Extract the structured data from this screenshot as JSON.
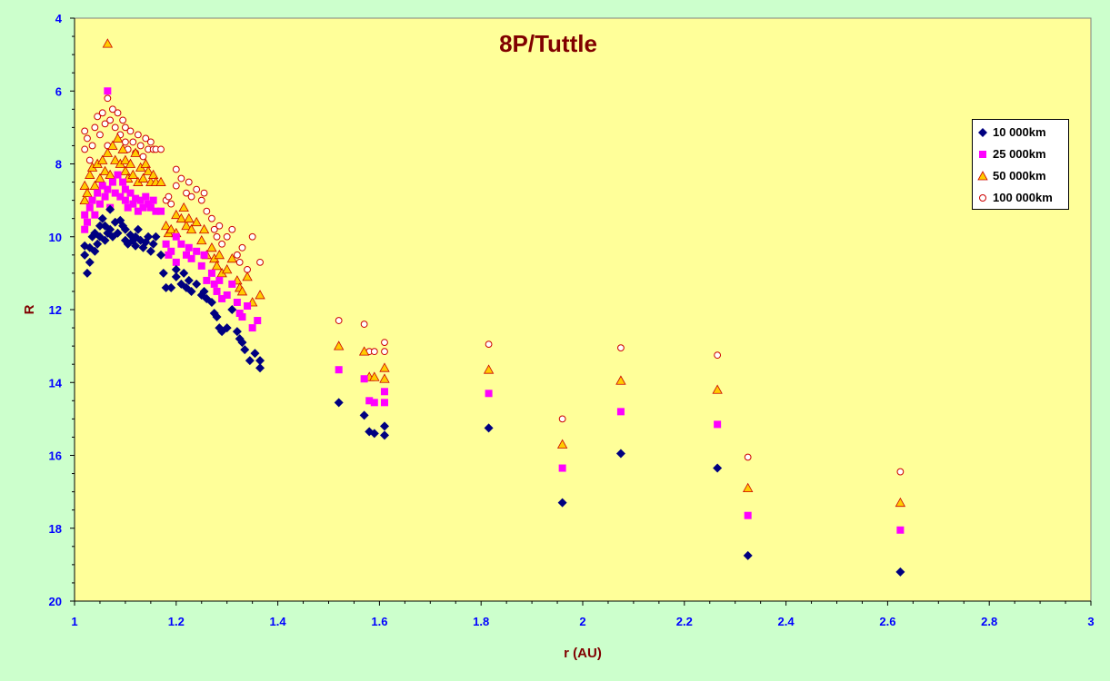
{
  "chart_data": {
    "type": "scatter",
    "title": "8P/Tuttle",
    "xlabel": "r (AU)",
    "ylabel": "R",
    "xlim": [
      1,
      3
    ],
    "ylim": [
      4,
      20
    ],
    "y_inverted": true,
    "x_ticks": [
      "1",
      "1.2",
      "1.4",
      "1.6",
      "1.8",
      "2",
      "2.2",
      "2.4",
      "2.6",
      "2.8",
      "3"
    ],
    "y_ticks": [
      "4",
      "6",
      "8",
      "10",
      "12",
      "14",
      "16",
      "18",
      "20"
    ],
    "grid": false,
    "legend_position": "top-right",
    "series": [
      {
        "name": "10 000km",
        "marker": "diamond",
        "color": "#000080",
        "points": [
          [
            1.02,
            10.25
          ],
          [
            1.02,
            10.5
          ],
          [
            1.025,
            11.0
          ],
          [
            1.03,
            10.7
          ],
          [
            1.03,
            10.3
          ],
          [
            1.035,
            10.0
          ],
          [
            1.04,
            9.9
          ],
          [
            1.04,
            10.4
          ],
          [
            1.045,
            10.2
          ],
          [
            1.05,
            9.7
          ],
          [
            1.05,
            10.0
          ],
          [
            1.055,
            9.5
          ],
          [
            1.06,
            9.7
          ],
          [
            1.06,
            10.1
          ],
          [
            1.065,
            9.9
          ],
          [
            1.07,
            9.25
          ],
          [
            1.07,
            9.8
          ],
          [
            1.075,
            10.0
          ],
          [
            1.08,
            9.6
          ],
          [
            1.085,
            9.9
          ],
          [
            1.09,
            9.55
          ],
          [
            1.095,
            9.7
          ],
          [
            1.1,
            9.8
          ],
          [
            1.1,
            10.1
          ],
          [
            1.105,
            10.2
          ],
          [
            1.11,
            9.95
          ],
          [
            1.115,
            10.1
          ],
          [
            1.12,
            10.0
          ],
          [
            1.12,
            10.25
          ],
          [
            1.125,
            9.8
          ],
          [
            1.13,
            10.1
          ],
          [
            1.135,
            10.3
          ],
          [
            1.14,
            10.15
          ],
          [
            1.145,
            10.0
          ],
          [
            1.15,
            10.4
          ],
          [
            1.155,
            10.2
          ],
          [
            1.16,
            10.0
          ],
          [
            1.17,
            10.5
          ],
          [
            1.175,
            11.0
          ],
          [
            1.18,
            11.4
          ],
          [
            1.19,
            11.4
          ],
          [
            1.2,
            10.9
          ],
          [
            1.2,
            11.1
          ],
          [
            1.21,
            11.3
          ],
          [
            1.215,
            11.0
          ],
          [
            1.22,
            11.4
          ],
          [
            1.225,
            11.2
          ],
          [
            1.23,
            11.5
          ],
          [
            1.24,
            11.3
          ],
          [
            1.25,
            11.6
          ],
          [
            1.255,
            11.5
          ],
          [
            1.26,
            11.7
          ],
          [
            1.27,
            11.8
          ],
          [
            1.275,
            12.1
          ],
          [
            1.28,
            12.2
          ],
          [
            1.285,
            12.5
          ],
          [
            1.29,
            12.6
          ],
          [
            1.3,
            12.5
          ],
          [
            1.31,
            12.0
          ],
          [
            1.32,
            12.6
          ],
          [
            1.325,
            12.8
          ],
          [
            1.33,
            12.9
          ],
          [
            1.335,
            13.1
          ],
          [
            1.345,
            13.4
          ],
          [
            1.355,
            13.2
          ],
          [
            1.365,
            13.6
          ],
          [
            1.365,
            13.4
          ],
          [
            1.52,
            14.55
          ],
          [
            1.57,
            14.9
          ],
          [
            1.58,
            15.35
          ],
          [
            1.59,
            15.4
          ],
          [
            1.61,
            15.2
          ],
          [
            1.61,
            15.45
          ],
          [
            1.815,
            15.25
          ],
          [
            1.96,
            17.3
          ],
          [
            2.075,
            15.95
          ],
          [
            2.265,
            16.35
          ],
          [
            2.325,
            18.75
          ],
          [
            2.625,
            19.2
          ]
        ]
      },
      {
        "name": "25 000km",
        "marker": "square",
        "color": "#ff00ff",
        "points": [
          [
            1.02,
            9.4
          ],
          [
            1.02,
            9.8
          ],
          [
            1.025,
            9.6
          ],
          [
            1.03,
            9.2
          ],
          [
            1.035,
            9.0
          ],
          [
            1.04,
            9.4
          ],
          [
            1.045,
            8.8
          ],
          [
            1.05,
            9.1
          ],
          [
            1.055,
            8.6
          ],
          [
            1.06,
            8.9
          ],
          [
            1.065,
            8.7
          ],
          [
            1.065,
            6.0
          ],
          [
            1.07,
            9.2
          ],
          [
            1.075,
            8.5
          ],
          [
            1.08,
            8.8
          ],
          [
            1.085,
            8.3
          ],
          [
            1.09,
            8.9
          ],
          [
            1.095,
            8.5
          ],
          [
            1.1,
            8.7
          ],
          [
            1.1,
            9.0
          ],
          [
            1.105,
            9.2
          ],
          [
            1.11,
            8.8
          ],
          [
            1.115,
            9.1
          ],
          [
            1.12,
            8.95
          ],
          [
            1.125,
            9.3
          ],
          [
            1.13,
            9.0
          ],
          [
            1.135,
            9.2
          ],
          [
            1.14,
            8.9
          ],
          [
            1.145,
            9.1
          ],
          [
            1.15,
            9.2
          ],
          [
            1.155,
            9.0
          ],
          [
            1.16,
            9.3
          ],
          [
            1.17,
            9.3
          ],
          [
            1.18,
            10.2
          ],
          [
            1.185,
            10.5
          ],
          [
            1.19,
            10.4
          ],
          [
            1.2,
            10.0
          ],
          [
            1.2,
            10.7
          ],
          [
            1.21,
            10.2
          ],
          [
            1.22,
            10.5
          ],
          [
            1.225,
            10.3
          ],
          [
            1.23,
            10.6
          ],
          [
            1.24,
            10.4
          ],
          [
            1.25,
            10.8
          ],
          [
            1.255,
            10.5
          ],
          [
            1.26,
            11.2
          ],
          [
            1.27,
            11.0
          ],
          [
            1.275,
            11.3
          ],
          [
            1.28,
            11.5
          ],
          [
            1.285,
            11.2
          ],
          [
            1.29,
            11.7
          ],
          [
            1.3,
            11.6
          ],
          [
            1.31,
            11.3
          ],
          [
            1.32,
            11.8
          ],
          [
            1.325,
            12.1
          ],
          [
            1.33,
            12.2
          ],
          [
            1.34,
            11.9
          ],
          [
            1.35,
            12.5
          ],
          [
            1.36,
            12.3
          ],
          [
            1.52,
            13.65
          ],
          [
            1.57,
            13.9
          ],
          [
            1.58,
            14.5
          ],
          [
            1.59,
            14.55
          ],
          [
            1.61,
            14.25
          ],
          [
            1.61,
            14.55
          ],
          [
            1.815,
            14.3
          ],
          [
            1.96,
            16.35
          ],
          [
            2.075,
            14.8
          ],
          [
            2.265,
            15.15
          ],
          [
            2.325,
            17.65
          ],
          [
            2.625,
            18.05
          ]
        ]
      },
      {
        "name": "50 000km",
        "marker": "triangle",
        "color": "#ffcc00",
        "points": [
          [
            1.02,
            8.6
          ],
          [
            1.02,
            9.0
          ],
          [
            1.025,
            8.8
          ],
          [
            1.03,
            8.3
          ],
          [
            1.035,
            8.1
          ],
          [
            1.04,
            8.6
          ],
          [
            1.045,
            8.0
          ],
          [
            1.05,
            8.4
          ],
          [
            1.055,
            7.9
          ],
          [
            1.06,
            8.2
          ],
          [
            1.065,
            4.7
          ],
          [
            1.065,
            7.7
          ],
          [
            1.07,
            8.3
          ],
          [
            1.075,
            7.5
          ],
          [
            1.08,
            7.9
          ],
          [
            1.085,
            7.3
          ],
          [
            1.09,
            8.0
          ],
          [
            1.095,
            7.6
          ],
          [
            1.1,
            7.9
          ],
          [
            1.1,
            8.2
          ],
          [
            1.105,
            8.4
          ],
          [
            1.11,
            8.0
          ],
          [
            1.115,
            8.3
          ],
          [
            1.12,
            7.7
          ],
          [
            1.125,
            8.5
          ],
          [
            1.13,
            8.1
          ],
          [
            1.135,
            8.4
          ],
          [
            1.14,
            8.0
          ],
          [
            1.145,
            8.2
          ],
          [
            1.15,
            8.5
          ],
          [
            1.155,
            8.3
          ],
          [
            1.16,
            8.5
          ],
          [
            1.17,
            8.5
          ],
          [
            1.18,
            9.7
          ],
          [
            1.185,
            9.9
          ],
          [
            1.19,
            9.8
          ],
          [
            1.2,
            9.4
          ],
          [
            1.2,
            9.9
          ],
          [
            1.21,
            9.5
          ],
          [
            1.215,
            9.2
          ],
          [
            1.22,
            9.7
          ],
          [
            1.225,
            9.5
          ],
          [
            1.23,
            9.8
          ],
          [
            1.24,
            9.6
          ],
          [
            1.25,
            10.1
          ],
          [
            1.255,
            9.8
          ],
          [
            1.26,
            10.5
          ],
          [
            1.27,
            10.3
          ],
          [
            1.275,
            10.6
          ],
          [
            1.28,
            10.8
          ],
          [
            1.285,
            10.5
          ],
          [
            1.29,
            11.0
          ],
          [
            1.3,
            10.9
          ],
          [
            1.31,
            10.6
          ],
          [
            1.32,
            11.2
          ],
          [
            1.325,
            11.4
          ],
          [
            1.33,
            11.5
          ],
          [
            1.34,
            11.1
          ],
          [
            1.35,
            11.8
          ],
          [
            1.365,
            11.6
          ],
          [
            1.52,
            13.0
          ],
          [
            1.57,
            13.15
          ],
          [
            1.58,
            13.85
          ],
          [
            1.59,
            13.85
          ],
          [
            1.61,
            13.6
          ],
          [
            1.61,
            13.9
          ],
          [
            1.815,
            13.65
          ],
          [
            1.96,
            15.7
          ],
          [
            2.075,
            13.95
          ],
          [
            2.265,
            14.2
          ],
          [
            2.325,
            16.9
          ],
          [
            2.625,
            17.3
          ]
        ]
      },
      {
        "name": "100 000km",
        "marker": "circle",
        "color": "#cc0000",
        "points": [
          [
            1.02,
            7.1
          ],
          [
            1.02,
            7.6
          ],
          [
            1.025,
            7.3
          ],
          [
            1.03,
            7.9
          ],
          [
            1.035,
            7.5
          ],
          [
            1.04,
            7.0
          ],
          [
            1.045,
            6.7
          ],
          [
            1.05,
            7.2
          ],
          [
            1.055,
            6.6
          ],
          [
            1.06,
            6.9
          ],
          [
            1.065,
            6.2
          ],
          [
            1.065,
            7.5
          ],
          [
            1.07,
            6.8
          ],
          [
            1.075,
            6.5
          ],
          [
            1.08,
            7.0
          ],
          [
            1.085,
            6.6
          ],
          [
            1.09,
            7.2
          ],
          [
            1.095,
            6.8
          ],
          [
            1.1,
            7.0
          ],
          [
            1.1,
            7.4
          ],
          [
            1.105,
            7.6
          ],
          [
            1.11,
            7.1
          ],
          [
            1.115,
            7.4
          ],
          [
            1.12,
            7.7
          ],
          [
            1.125,
            7.2
          ],
          [
            1.13,
            7.5
          ],
          [
            1.135,
            7.8
          ],
          [
            1.14,
            7.3
          ],
          [
            1.145,
            7.6
          ],
          [
            1.15,
            7.4
          ],
          [
            1.155,
            7.6
          ],
          [
            1.16,
            7.6
          ],
          [
            1.17,
            7.6
          ],
          [
            1.18,
            9.0
          ],
          [
            1.185,
            8.9
          ],
          [
            1.19,
            9.1
          ],
          [
            1.2,
            8.15
          ],
          [
            1.2,
            8.6
          ],
          [
            1.21,
            8.4
          ],
          [
            1.22,
            8.8
          ],
          [
            1.225,
            8.5
          ],
          [
            1.23,
            8.9
          ],
          [
            1.24,
            8.7
          ],
          [
            1.25,
            9.0
          ],
          [
            1.255,
            8.8
          ],
          [
            1.26,
            9.3
          ],
          [
            1.27,
            9.5
          ],
          [
            1.275,
            9.8
          ],
          [
            1.28,
            10.0
          ],
          [
            1.285,
            9.7
          ],
          [
            1.29,
            10.2
          ],
          [
            1.3,
            10.0
          ],
          [
            1.31,
            9.8
          ],
          [
            1.32,
            10.5
          ],
          [
            1.325,
            10.7
          ],
          [
            1.33,
            10.3
          ],
          [
            1.34,
            10.9
          ],
          [
            1.35,
            10.0
          ],
          [
            1.365,
            10.7
          ],
          [
            1.52,
            12.3
          ],
          [
            1.57,
            12.4
          ],
          [
            1.58,
            13.15
          ],
          [
            1.59,
            13.15
          ],
          [
            1.61,
            12.9
          ],
          [
            1.61,
            13.15
          ],
          [
            1.815,
            12.95
          ],
          [
            1.96,
            15.0
          ],
          [
            2.075,
            13.05
          ],
          [
            2.265,
            13.25
          ],
          [
            2.325,
            16.05
          ],
          [
            2.625,
            16.45
          ]
        ]
      }
    ]
  }
}
